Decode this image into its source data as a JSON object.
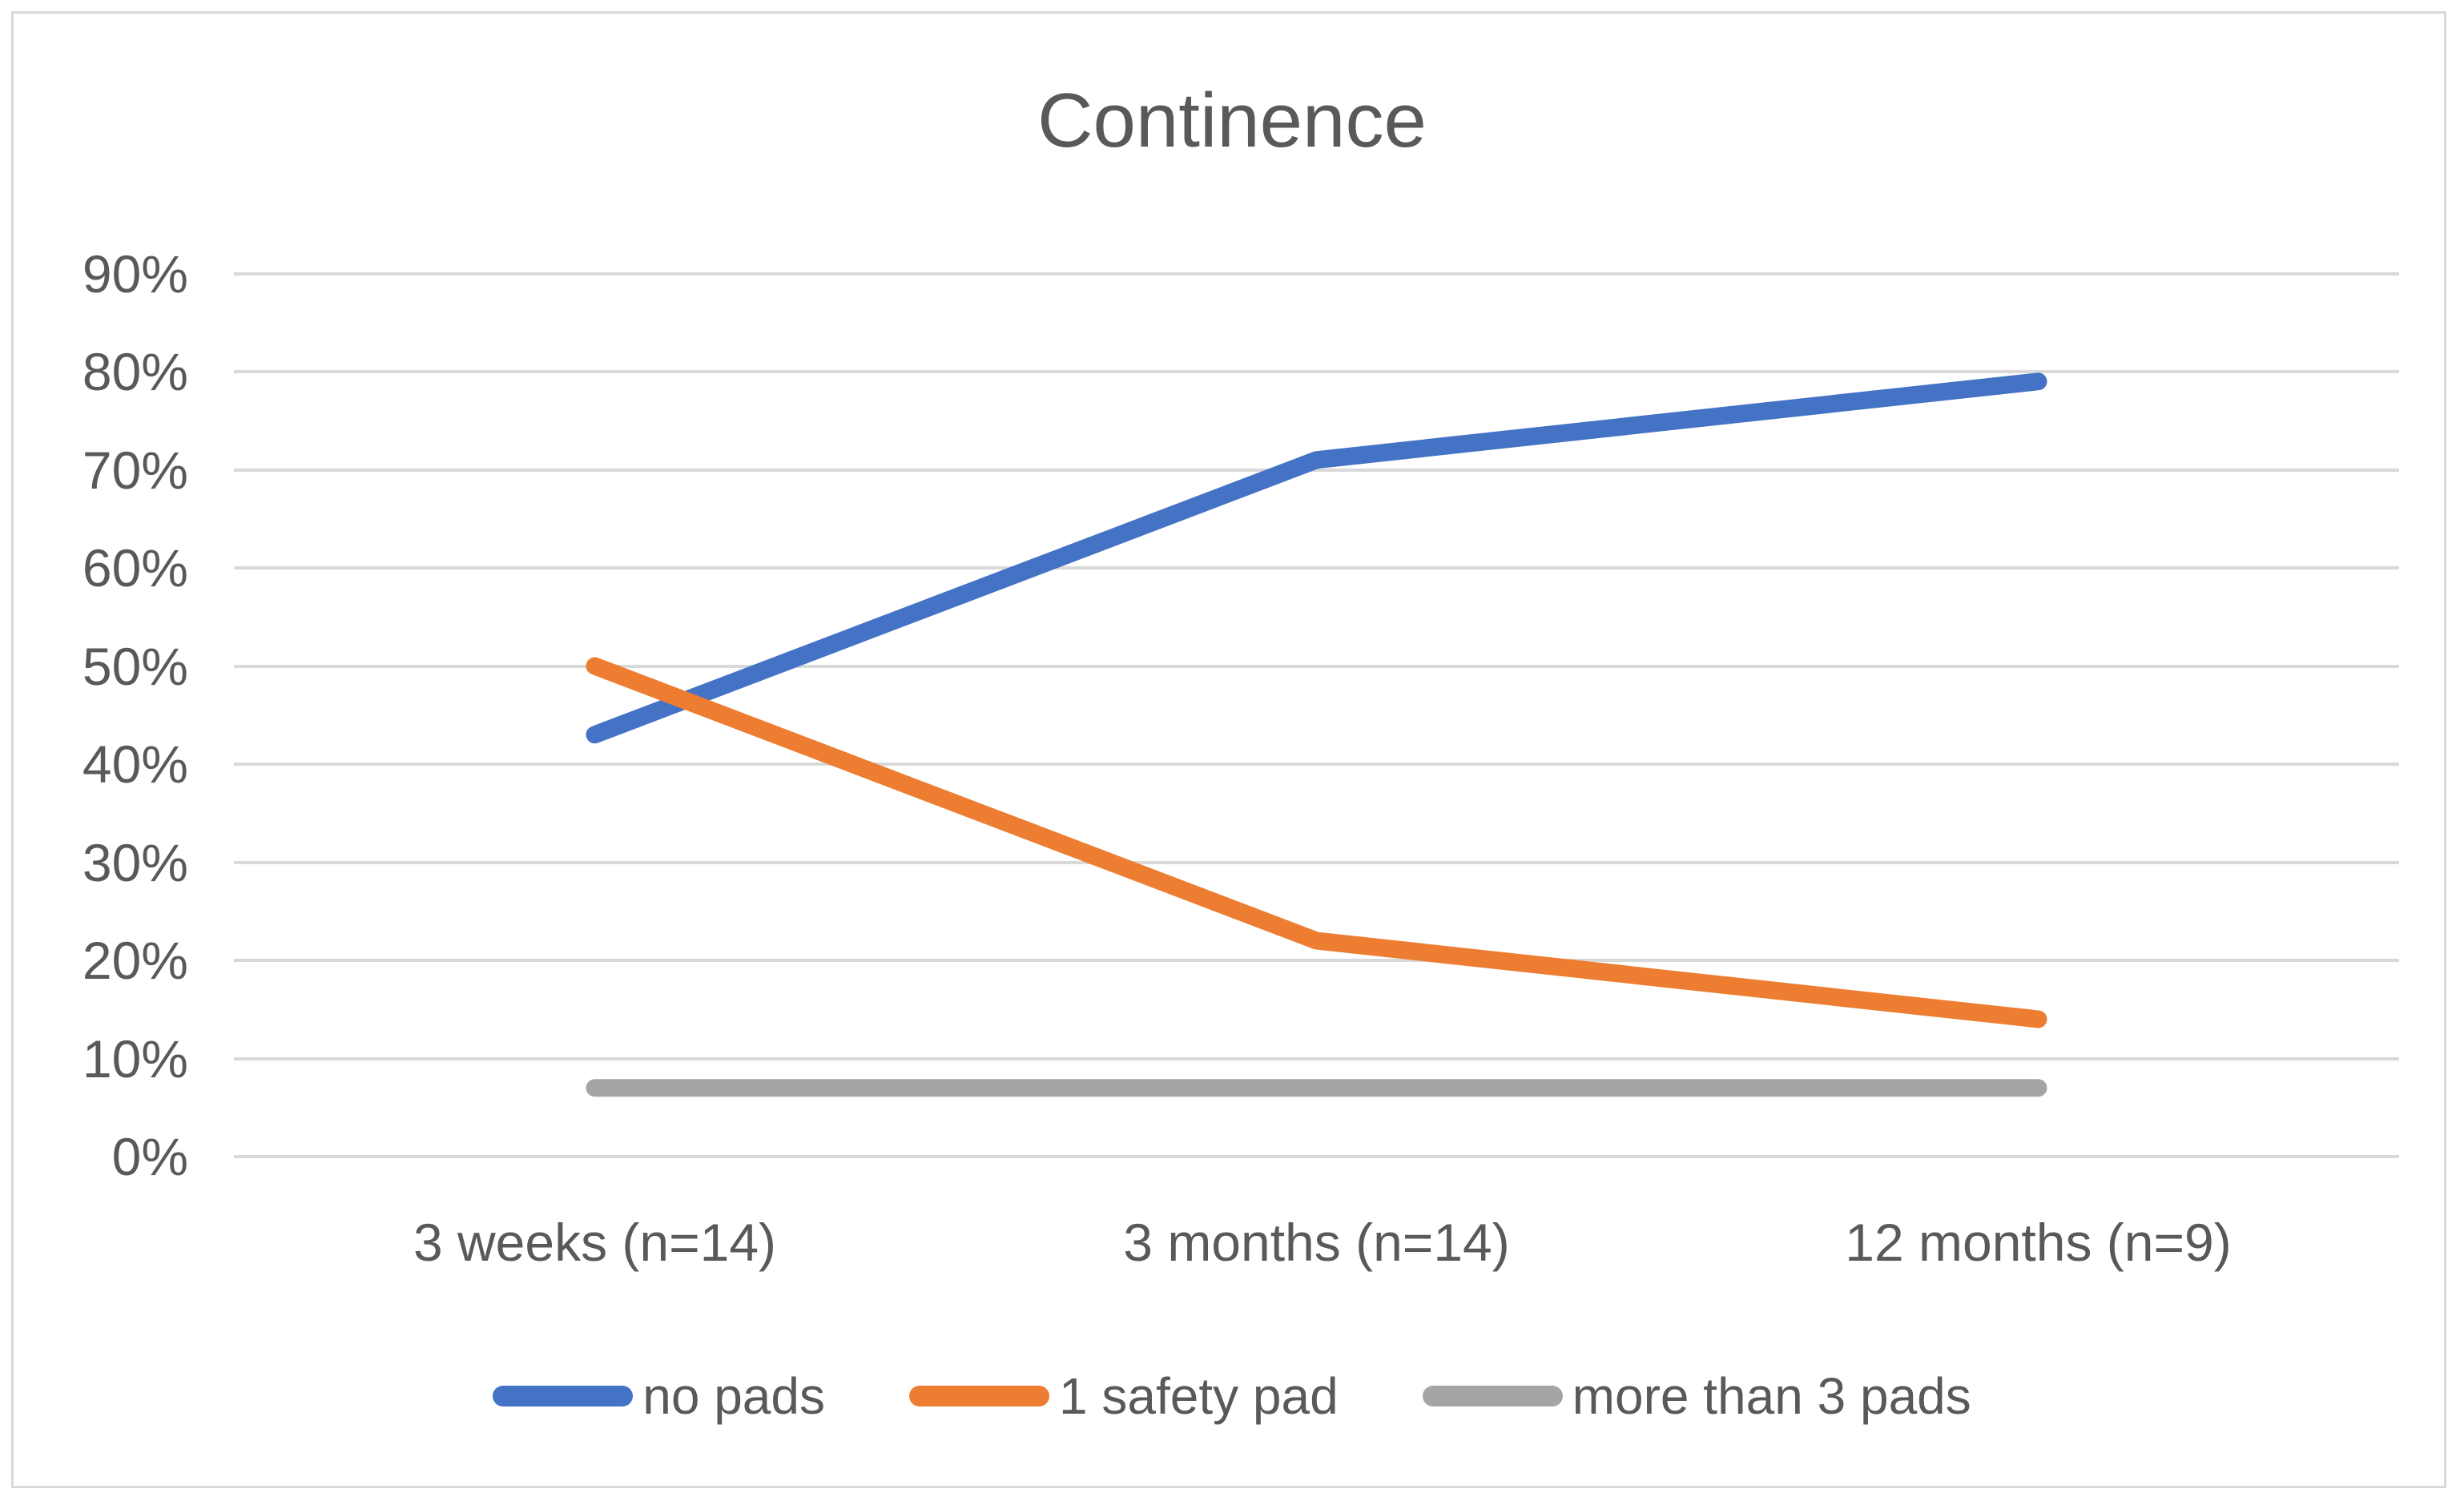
{
  "title": "Continence",
  "chart_data": {
    "type": "line",
    "title": "Continence",
    "categories": [
      "3 weeks (n=14)",
      "3 months (n=14)",
      "12 months (n=9)"
    ],
    "series": [
      {
        "name": "no pads",
        "color": "#4472C4",
        "values": [
          43,
          71,
          79
        ]
      },
      {
        "name": "1 safety pad",
        "color": "#ED7D31",
        "values": [
          50,
          22,
          14
        ]
      },
      {
        "name": "more than 3 pads",
        "color": "#A5A5A5",
        "values": [
          7,
          7,
          7
        ]
      }
    ],
    "ylim": [
      0,
      95
    ],
    "yticks": [
      90,
      80,
      70,
      60,
      50,
      40,
      30,
      20,
      10,
      0
    ],
    "ytick_suffix": "%",
    "grid": true,
    "legend_position": "bottom",
    "colors": {
      "gridline": "#D9D9D9",
      "text": "#595959",
      "frame_border": "#D9D9D9",
      "background": "#FFFFFF"
    }
  }
}
